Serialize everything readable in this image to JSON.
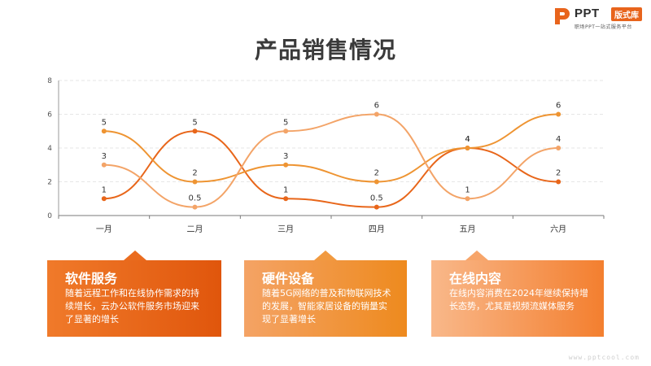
{
  "logo": {
    "name": "PPT",
    "badge": "版式库",
    "tagline": "职场PPT一站式服务平台"
  },
  "slide_title": "产品销售情况",
  "chart_data": {
    "type": "line",
    "categories": [
      "一月",
      "二月",
      "三月",
      "四月",
      "五月",
      "六月"
    ],
    "series": [
      {
        "values": [
          1,
          5,
          1,
          0.5,
          4,
          2
        ],
        "color": "#e8661a"
      },
      {
        "values": [
          5,
          2,
          3,
          2,
          4,
          6
        ],
        "color": "#ee9432"
      },
      {
        "values": [
          3,
          0.5,
          5,
          6,
          1,
          4
        ],
        "color": "#f3a468"
      }
    ],
    "yticks": [
      0,
      2,
      4,
      6,
      8
    ],
    "ylim": [
      0,
      8
    ],
    "grid": true,
    "smooth": true,
    "data_labels": true
  },
  "cards": [
    {
      "title": "软件服务",
      "body": "随着远程工作和在线协作需求的持续增长，云办公软件服务市场迎来了显著的增长"
    },
    {
      "title": "硬件设备",
      "body": "随着5G网络的普及和物联网技术的发展，智能家居设备的销量实现了显著增长"
    },
    {
      "title": "在线内容",
      "body": "在线内容消费在2024年继续保持增长态势，尤其是视频流媒体服务"
    }
  ],
  "footer": "www.pptcool.com"
}
